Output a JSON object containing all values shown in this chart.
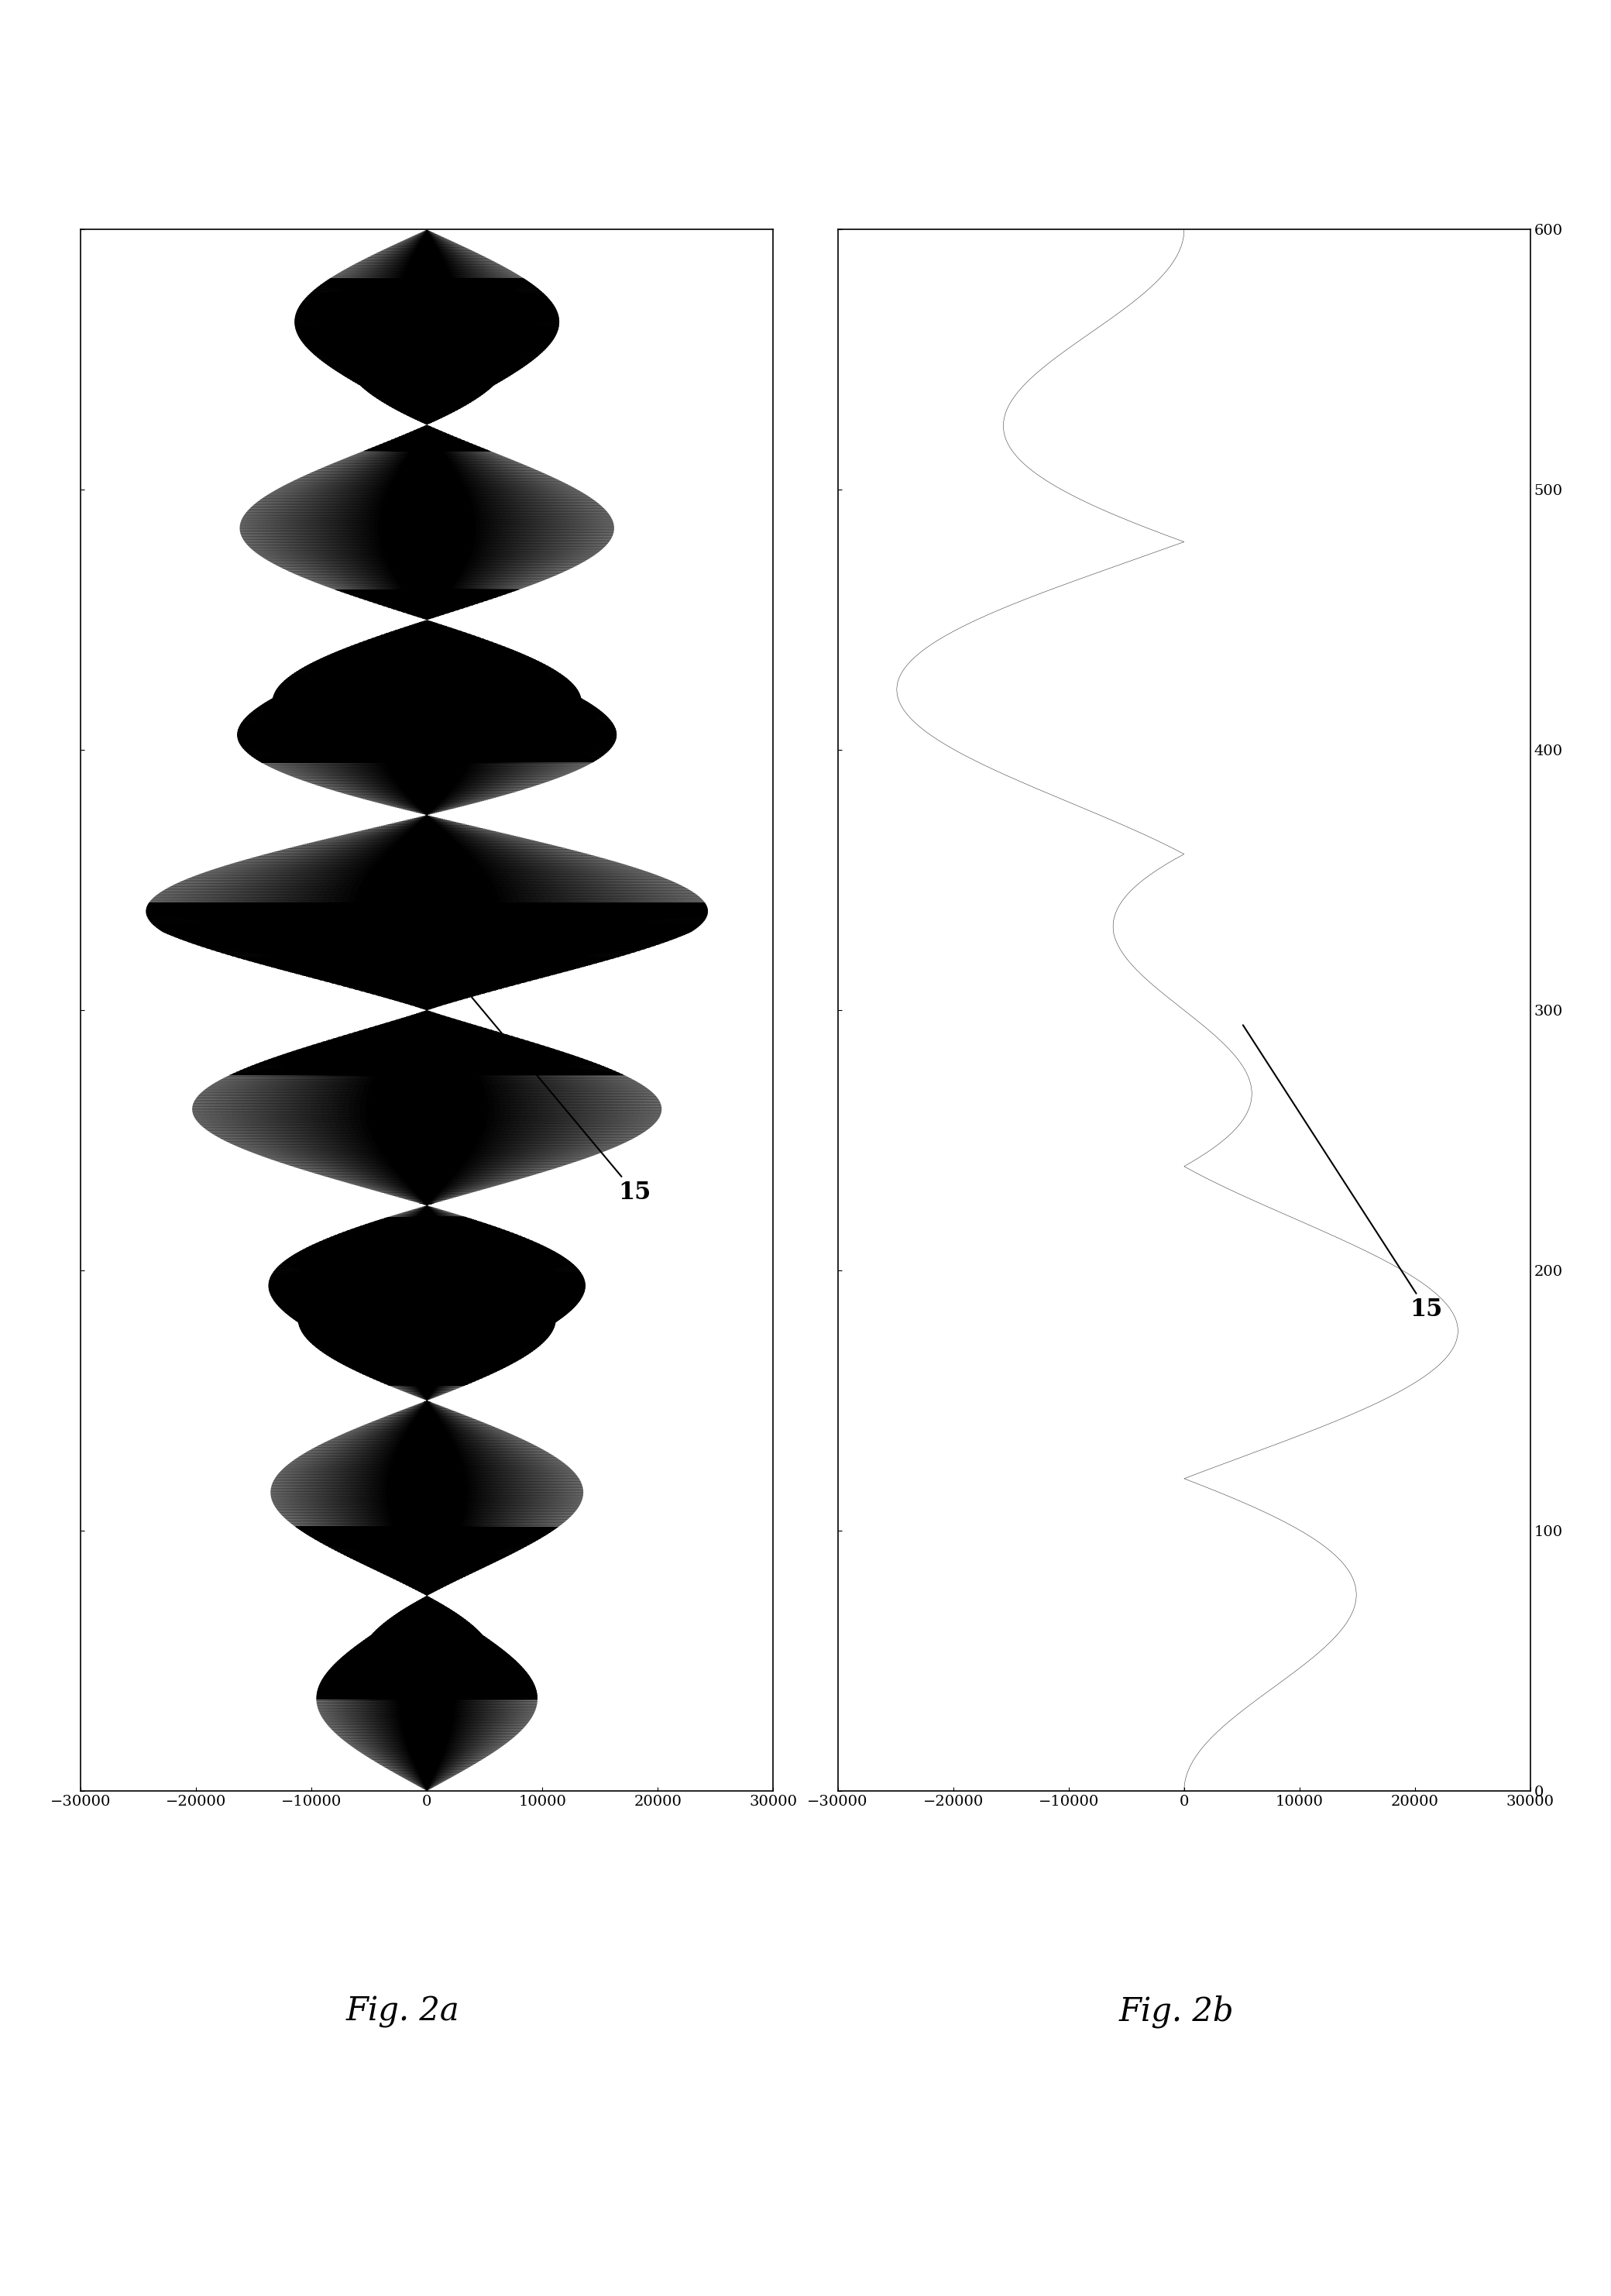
{
  "title_a": "Fig. 2a",
  "title_b": "Fig. 2b",
  "annotation_label": "15",
  "time_lim": [
    0,
    600
  ],
  "val_lim": [
    -30000,
    30000
  ],
  "val_ticks": [
    30000,
    20000,
    10000,
    0,
    -10000,
    -20000,
    -30000
  ],
  "time_ticks": [
    0,
    100,
    200,
    300,
    400,
    500,
    600
  ],
  "n_points": 12000,
  "carrier_freq_a": 25.0,
  "envelope_peaks_a": 8,
  "amplitude_a": 26000,
  "damping_a": 0.003,
  "carrier_freq_b": 20.0,
  "envelope_peaks_b": 5,
  "amplitude_b": 28000,
  "damping_b": 0.0008,
  "bg_color": "#ffffff",
  "line_color": "#000000",
  "ann_a_point_t": 315,
  "ann_a_point_v": 2000,
  "ann_a_text_t": 230,
  "ann_a_text_v": 18000,
  "ann_b_point_t": 295,
  "ann_b_point_v": 5000,
  "ann_b_text_t": 185,
  "ann_b_text_v": 21000,
  "linewidth": 0.3,
  "tick_fontsize": 14,
  "label_fontsize": 30,
  "ann_fontsize": 22
}
